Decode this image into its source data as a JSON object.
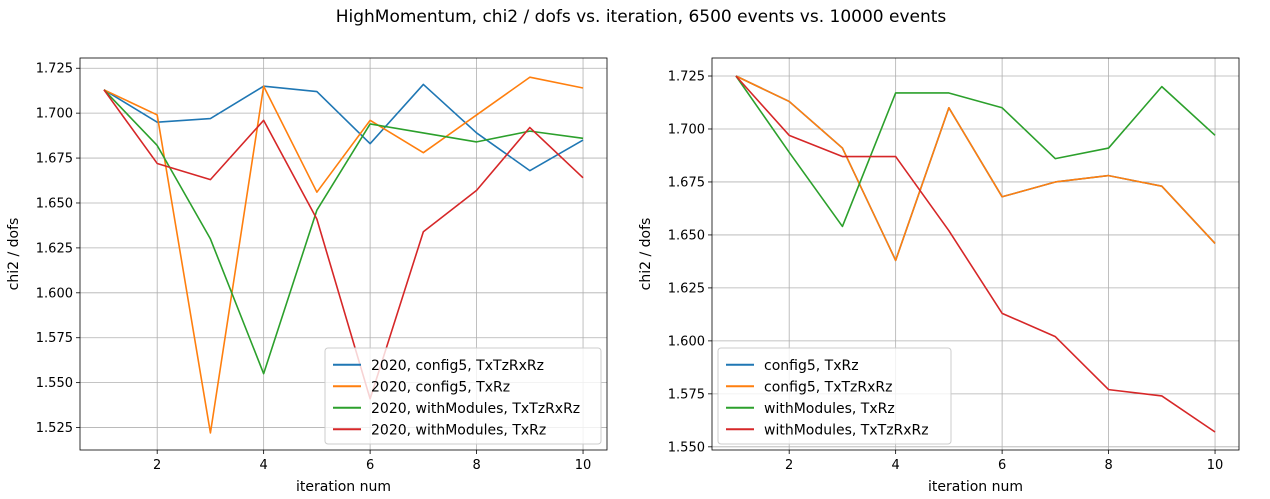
{
  "suptitle": "HighMomentum, chi2 / dofs vs. iteration, 6500 events vs. 10000 events",
  "chart_data": [
    {
      "type": "line",
      "title": "",
      "xlabel": "iteration num",
      "ylabel": "chi2 / dofs",
      "xlim": [
        0.55,
        10.45
      ],
      "ylim": [
        1.5125,
        1.7307
      ],
      "xticks": [
        2,
        4,
        6,
        8,
        10
      ],
      "yticks": [
        1.525,
        1.55,
        1.575,
        1.6,
        1.625,
        1.65,
        1.675,
        1.7,
        1.725
      ],
      "xtick_labels": [
        "2",
        "4",
        "6",
        "8",
        "10"
      ],
      "ytick_labels": [
        "1.525",
        "1.550",
        "1.575",
        "1.600",
        "1.625",
        "1.650",
        "1.675",
        "1.700",
        "1.725"
      ],
      "grid": true,
      "legend_loc": "lower right",
      "x": [
        1,
        2,
        3,
        4,
        5,
        6,
        7,
        8,
        9,
        10
      ],
      "series": [
        {
          "name": "2020, config5, TxTzRxRz",
          "color": "#1f77b4",
          "values": [
            1.713,
            1.695,
            1.697,
            1.715,
            1.712,
            1.683,
            1.716,
            1.689,
            1.668,
            1.685
          ]
        },
        {
          "name": "2020, config5, TxRz",
          "color": "#ff7f0e",
          "values": [
            1.713,
            1.699,
            1.522,
            1.715,
            1.656,
            1.696,
            1.678,
            1.699,
            1.72,
            1.714
          ]
        },
        {
          "name": "2020, withModules, TxTzRxRz",
          "color": "#2ca02c",
          "values": [
            1.713,
            1.682,
            1.63,
            1.555,
            1.646,
            1.694,
            1.689,
            1.684,
            1.69,
            1.686
          ]
        },
        {
          "name": "2020, withModules, TxRz",
          "color": "#d62728",
          "values": [
            1.713,
            1.672,
            1.663,
            1.696,
            1.641,
            1.541,
            1.634,
            1.657,
            1.692,
            1.664
          ]
        }
      ]
    },
    {
      "type": "line",
      "title": "",
      "xlabel": "iteration num",
      "ylabel": "chi2 / dofs",
      "xlim": [
        0.55,
        10.45
      ],
      "ylim": [
        1.5485,
        1.7335
      ],
      "xticks": [
        2,
        4,
        6,
        8,
        10
      ],
      "yticks": [
        1.55,
        1.575,
        1.6,
        1.625,
        1.65,
        1.675,
        1.7,
        1.725
      ],
      "xtick_labels": [
        "2",
        "4",
        "6",
        "8",
        "10"
      ],
      "ytick_labels": [
        "1.550",
        "1.575",
        "1.600",
        "1.625",
        "1.650",
        "1.675",
        "1.700",
        "1.725"
      ],
      "grid": true,
      "legend_loc": "lower left",
      "x": [
        1,
        2,
        3,
        4,
        5,
        6,
        7,
        8,
        9,
        10
      ],
      "series": [
        {
          "name": "config5, TxRz",
          "color": "#1f77b4",
          "values": [
            1.725,
            1.713,
            1.691,
            1.638,
            1.71,
            1.668,
            1.675,
            1.678,
            1.673,
            1.646
          ]
        },
        {
          "name": "config5, TxTzRxRz",
          "color": "#ff7f0e",
          "values": [
            1.725,
            1.713,
            1.691,
            1.638,
            1.71,
            1.668,
            1.675,
            1.678,
            1.673,
            1.646
          ]
        },
        {
          "name": "withModules, TxRz",
          "color": "#2ca02c",
          "values": [
            1.725,
            1.689,
            1.654,
            1.717,
            1.717,
            1.71,
            1.686,
            1.691,
            1.72,
            1.697
          ]
        },
        {
          "name": "withModules, TxTzRxRz",
          "color": "#d62728",
          "values": [
            1.725,
            1.697,
            1.687,
            1.687,
            1.652,
            1.613,
            1.602,
            1.577,
            1.574,
            1.557
          ]
        }
      ]
    }
  ]
}
